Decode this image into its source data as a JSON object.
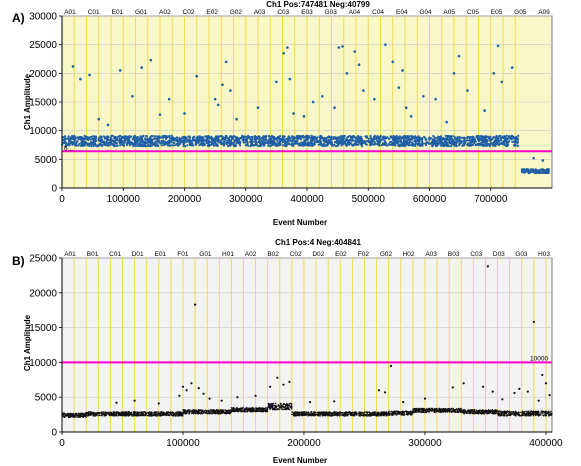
{
  "chart_data": [
    {
      "type": "scatter",
      "panel_label": "A)",
      "title": "Ch1 Pos:747481 Neg:40799",
      "xlabel": "Event Number",
      "ylabel": "Ch1 Amplitude",
      "xlim": [
        0,
        800000
      ],
      "ylim": [
        0,
        30000
      ],
      "x_ticks": [
        0,
        100000,
        200000,
        300000,
        400000,
        500000,
        600000,
        700000
      ],
      "y_ticks": [
        0,
        5000,
        10000,
        15000,
        20000,
        25000,
        30000
      ],
      "grid": "on",
      "plot_background": "#f7f7c8",
      "point_color": "#1f5fa6",
      "threshold": {
        "value": 6400,
        "color": "#ff00cc",
        "label": "6..."
      },
      "well_labels": [
        "A01",
        "C01",
        "E01",
        "G01",
        "A02",
        "C02",
        "E02",
        "G02",
        "A03",
        "C03",
        "E03",
        "G03",
        "A04",
        "C04",
        "E04",
        "G04",
        "A05",
        "C05",
        "E05",
        "G05",
        "A09"
      ],
      "dividers": [
        20000,
        40000,
        60000,
        80000,
        100000,
        120000,
        140000,
        160000,
        180000,
        200000,
        220000,
        240000,
        260000,
        280000,
        300000,
        320000,
        340000,
        360000,
        380000,
        400000,
        420000,
        440000,
        460000,
        480000,
        500000,
        520000,
        540000,
        560000,
        580000,
        600000,
        620000,
        640000,
        660000,
        680000,
        700000,
        720000,
        740000
      ],
      "series": [
        {
          "x_range": [
            0,
            745000
          ],
          "band": [
            7300,
            9100
          ],
          "population": "positive"
        },
        {
          "x_range": [
            750000,
            795000
          ],
          "band": [
            2600,
            3300
          ],
          "population": "negative"
        }
      ],
      "outliers": [
        [
          18000,
          21200
        ],
        [
          30000,
          19000
        ],
        [
          45000,
          19700
        ],
        [
          60000,
          12000
        ],
        [
          75000,
          11000
        ],
        [
          95000,
          20500
        ],
        [
          115000,
          16000
        ],
        [
          130000,
          21000
        ],
        [
          145000,
          22300
        ],
        [
          160000,
          12800
        ],
        [
          175000,
          15500
        ],
        [
          200000,
          13000
        ],
        [
          220000,
          19500
        ],
        [
          250000,
          15500
        ],
        [
          255000,
          14500
        ],
        [
          262000,
          18000
        ],
        [
          268000,
          22000
        ],
        [
          275000,
          17000
        ],
        [
          285000,
          12000
        ],
        [
          320000,
          14000
        ],
        [
          350000,
          18500
        ],
        [
          362000,
          23500
        ],
        [
          368000,
          24500
        ],
        [
          372000,
          19000
        ],
        [
          378000,
          13000
        ],
        [
          395000,
          12500
        ],
        [
          410000,
          15000
        ],
        [
          425000,
          16000
        ],
        [
          445000,
          14000
        ],
        [
          452000,
          24500
        ],
        [
          458000,
          24700
        ],
        [
          465000,
          20000
        ],
        [
          478000,
          23800
        ],
        [
          485000,
          21500
        ],
        [
          492000,
          17000
        ],
        [
          510000,
          15500
        ],
        [
          528000,
          25000
        ],
        [
          540000,
          22000
        ],
        [
          550000,
          17500
        ],
        [
          556000,
          20500
        ],
        [
          562000,
          14000
        ],
        [
          570000,
          12500
        ],
        [
          590000,
          16000
        ],
        [
          610000,
          15500
        ],
        [
          628000,
          11500
        ],
        [
          640000,
          20000
        ],
        [
          648000,
          23000
        ],
        [
          662000,
          17000
        ],
        [
          690000,
          13500
        ],
        [
          705000,
          20000
        ],
        [
          712000,
          24800
        ],
        [
          718000,
          18500
        ],
        [
          735000,
          21000
        ],
        [
          770000,
          5200
        ],
        [
          785000,
          4800
        ]
      ]
    },
    {
      "type": "scatter",
      "panel_label": "B)",
      "title": "Ch1 Pos:4 Neg:404841",
      "xlabel": "Event Number",
      "ylabel": "Ch1 Amplitude",
      "xlim": [
        0,
        405000
      ],
      "ylim": [
        0,
        25000
      ],
      "x_ticks": [
        0,
        100000,
        200000,
        300000,
        400000
      ],
      "y_ticks": [
        0,
        5000,
        10000,
        15000,
        20000,
        25000
      ],
      "grid": "on",
      "plot_background": "#f3f3f3",
      "point_color": "#111111",
      "threshold": {
        "value": 10000,
        "color": "#ff00cc",
        "label": "10000"
      },
      "well_labels": [
        "A01",
        "B01",
        "C01",
        "D01",
        "E01",
        "F01",
        "G01",
        "H01",
        "A02",
        "B02",
        "C02",
        "D02",
        "E02",
        "F02",
        "G02",
        "H02",
        "A03",
        "B03",
        "C03",
        "D03",
        "G03",
        "H03"
      ],
      "dividers": [
        10000,
        20000,
        30000,
        40000,
        50000,
        60000,
        70000,
        80000,
        90000,
        100000,
        110000,
        120000,
        130000,
        140000,
        150000,
        160000,
        170000,
        180000,
        190000,
        200000,
        210000,
        220000,
        230000,
        240000,
        250000,
        260000,
        270000,
        280000,
        290000,
        300000,
        310000,
        320000,
        330000,
        340000,
        350000,
        360000,
        370000,
        380000,
        390000,
        400000
      ],
      "series": [
        {
          "x_range": [
            0,
            20000
          ],
          "band": [
            2100,
            2700
          ],
          "population": "negative"
        },
        {
          "x_range": [
            20000,
            100000
          ],
          "band": [
            2300,
            2900
          ],
          "population": "negative"
        },
        {
          "x_range": [
            100000,
            140000
          ],
          "band": [
            2600,
            3200
          ],
          "population": "negative"
        },
        {
          "x_range": [
            140000,
            170000
          ],
          "band": [
            2900,
            3500
          ],
          "population": "negative"
        },
        {
          "x_range": [
            170000,
            190000
          ],
          "band": [
            3200,
            4100
          ],
          "population": "negative"
        },
        {
          "x_range": [
            190000,
            270000
          ],
          "band": [
            2300,
            2900
          ],
          "population": "negative"
        },
        {
          "x_range": [
            270000,
            290000
          ],
          "band": [
            2400,
            3000
          ],
          "population": "negative"
        },
        {
          "x_range": [
            290000,
            330000
          ],
          "band": [
            2800,
            3400
          ],
          "population": "negative"
        },
        {
          "x_range": [
            330000,
            360000
          ],
          "band": [
            2600,
            3200
          ],
          "population": "negative"
        },
        {
          "x_range": [
            360000,
            405000
          ],
          "band": [
            2300,
            3000
          ],
          "population": "negative"
        }
      ],
      "outliers": [
        [
          45000,
          4200
        ],
        [
          60000,
          4500
        ],
        [
          80000,
          4100
        ],
        [
          97000,
          5200
        ],
        [
          100000,
          6500
        ],
        [
          103000,
          6000
        ],
        [
          107000,
          7000
        ],
        [
          110000,
          18300
        ],
        [
          113000,
          6300
        ],
        [
          117000,
          5500
        ],
        [
          122000,
          4800
        ],
        [
          132000,
          4500
        ],
        [
          145000,
          5000
        ],
        [
          160000,
          5200
        ],
        [
          172000,
          6500
        ],
        [
          178000,
          7800
        ],
        [
          183000,
          6800
        ],
        [
          188000,
          7200
        ],
        [
          205000,
          4300
        ],
        [
          225000,
          4400
        ],
        [
          262000,
          6000
        ],
        [
          267000,
          5700
        ],
        [
          272000,
          9500
        ],
        [
          282000,
          4300
        ],
        [
          300000,
          4800
        ],
        [
          323000,
          6400
        ],
        [
          332000,
          7000
        ],
        [
          348000,
          6500
        ],
        [
          352000,
          23800
        ],
        [
          356000,
          5800
        ],
        [
          364000,
          4700
        ],
        [
          374000,
          5600
        ],
        [
          378000,
          6200
        ],
        [
          385000,
          5800
        ],
        [
          390000,
          15800
        ],
        [
          394000,
          4500
        ],
        [
          397000,
          8200
        ],
        [
          400000,
          7000
        ],
        [
          403000,
          5300
        ]
      ]
    }
  ]
}
